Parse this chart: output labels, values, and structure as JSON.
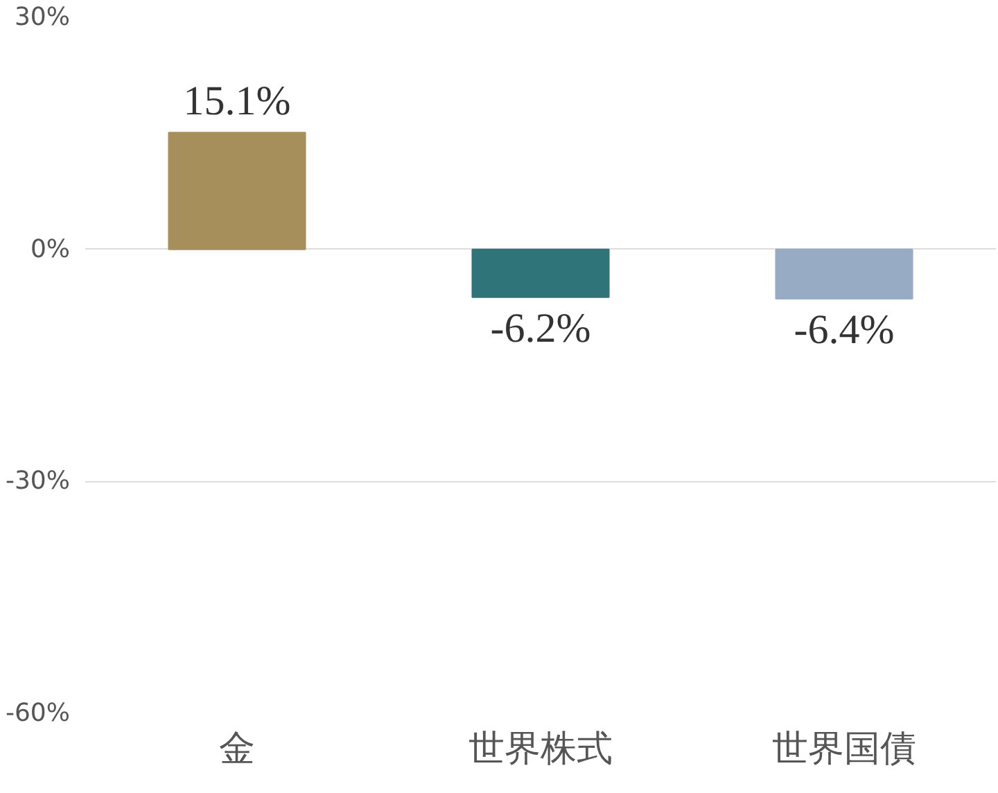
{
  "chart_data": {
    "type": "bar",
    "categories": [
      "金",
      "世界株式",
      "世界国債"
    ],
    "values": [
      15.1,
      -6.2,
      -6.4
    ],
    "colors": [
      "#a68f5b",
      "#2e7478",
      "#98abc4"
    ],
    "value_labels": [
      "15.1%",
      "-6.2%",
      "-6.4%"
    ],
    "ylim": [
      -60,
      30
    ],
    "yticks": [
      {
        "value": -60,
        "label": "-60%"
      },
      {
        "value": -30,
        "label": "-30%"
      },
      {
        "value": 0,
        "label": "0%"
      },
      {
        "value": 30,
        "label": "30%"
      }
    ],
    "grid": "y"
  }
}
